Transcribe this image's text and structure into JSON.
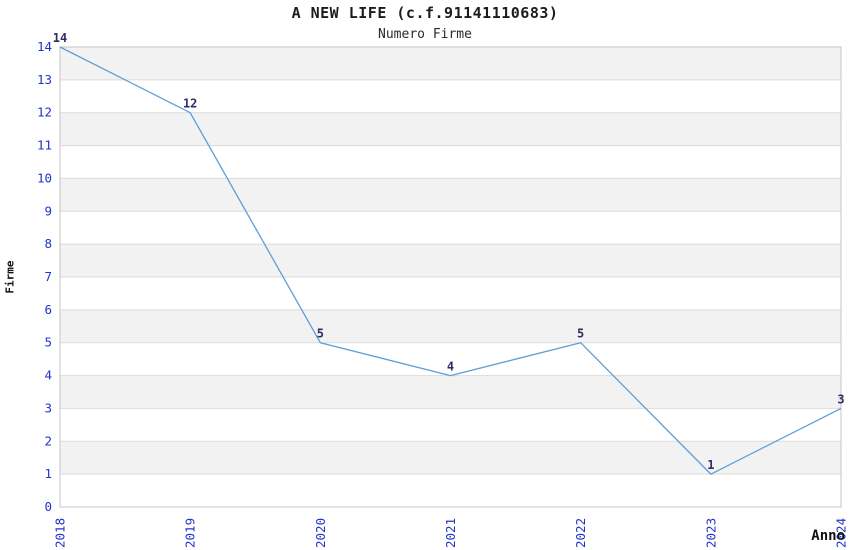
{
  "chart_data": {
    "type": "line",
    "title": "A NEW LIFE (c.f.91141110683)",
    "subtitle": "Numero Firme",
    "xlabel": "Anno",
    "ylabel": "Firme",
    "categories": [
      "2018",
      "2019",
      "2020",
      "2021",
      "2022",
      "2023",
      "2024"
    ],
    "values": [
      14,
      12,
      5,
      4,
      5,
      1,
      3
    ],
    "point_labels": [
      "14",
      "12",
      "5",
      "4",
      "5",
      "1",
      "3"
    ],
    "ylim": [
      0,
      14
    ],
    "ytick_step": 1,
    "yticks": [
      "0",
      "1",
      "2",
      "3",
      "4",
      "5",
      "6",
      "7",
      "8",
      "9",
      "10",
      "11",
      "12",
      "13",
      "14"
    ],
    "grid": true,
    "legend": "none",
    "colors": {
      "line": "#5e9ed6",
      "band_fill": "#f2f2f2",
      "gridline": "#dcdcdc",
      "plot_border": "#c6c6c6",
      "tick_label": "#2233cc",
      "point_label": "#2e2e66",
      "title_text": "#1c1c1c",
      "background": "#ffffff"
    }
  }
}
